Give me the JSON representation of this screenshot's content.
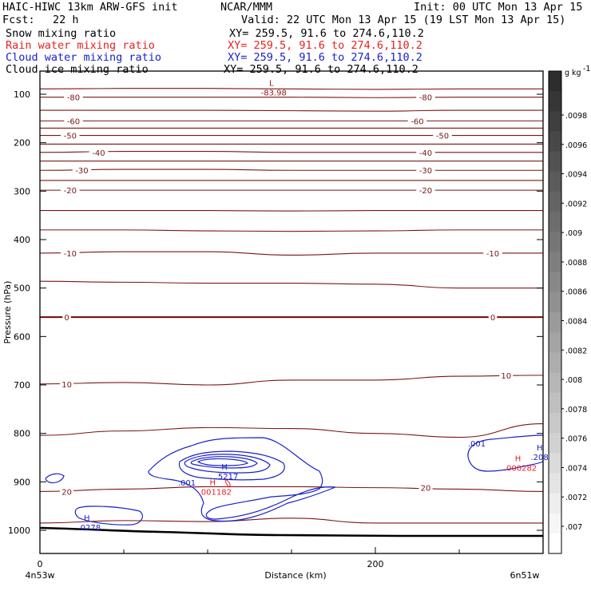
{
  "header": {
    "title": "HAIC-HIWC 13km ARW-GFS init",
    "org": "NCAR/MMM",
    "init": "Init: 00 UTC Mon 13 Apr 15",
    "fcst_label": "Fcst:",
    "fcst_value": "22 h",
    "valid": "Valid: 22 UTC Mon 13 Apr 15 (19 LST Mon 13 Apr 15)"
  },
  "fields": [
    {
      "name": "Snow mixing ratio",
      "xy": "XY= 259.5, 91.6 to 274.6,110.2",
      "color": "#000000"
    },
    {
      "name": "Rain water mixing ratio",
      "xy": "XY= 259.5, 91.6 to 274.6,110.2",
      "color": "#e8231f"
    },
    {
      "name": "Cloud water mixing ratio",
      "xy": "XY= 259.5, 91.6 to 274.6,110.2",
      "color": "#1b22c8"
    },
    {
      "name": "Cloud ice mixing ratio",
      "xy": "XY= 259.5, 91.6 to 274.6,110.2",
      "color": "#000000"
    }
  ],
  "chart_data": {
    "type": "contour",
    "xlabel": "Distance (km)",
    "ylabel": "Pressure (hPa)",
    "xlim": [
      0,
      300
    ],
    "ylim": [
      1000,
      50
    ],
    "x_ticks": [
      "0",
      "200"
    ],
    "y_ticks": [
      "100",
      "200",
      "300",
      "400",
      "500",
      "600",
      "700",
      "800",
      "900",
      "1000"
    ],
    "x_endpoints": {
      "left": "4n53w",
      "right": "6n51w"
    },
    "temperature_contour_labels": [
      {
        "value": "-80",
        "x": 20,
        "p": 106
      },
      {
        "value": "-80",
        "x": 230,
        "p": 106
      },
      {
        "value": "-60",
        "x": 20,
        "p": 155
      },
      {
        "value": "-60",
        "x": 225,
        "p": 155
      },
      {
        "value": "-50",
        "x": 18,
        "p": 185
      },
      {
        "value": "-50",
        "x": 240,
        "p": 185
      },
      {
        "value": "-40",
        "x": 35,
        "p": 220
      },
      {
        "value": "-40",
        "x": 230,
        "p": 220
      },
      {
        "value": "-30",
        "x": 25,
        "p": 257
      },
      {
        "value": "-30",
        "x": 230,
        "p": 257
      },
      {
        "value": "-20",
        "x": 18,
        "p": 298
      },
      {
        "value": "-20",
        "x": 230,
        "p": 298
      },
      {
        "value": "-10",
        "x": 18,
        "p": 428
      },
      {
        "value": "-10",
        "x": 270,
        "p": 428
      },
      {
        "value": "0",
        "x": 16,
        "p": 560
      },
      {
        "value": "0",
        "x": 270,
        "p": 560
      },
      {
        "value": "10",
        "x": 16,
        "p": 698
      },
      {
        "value": "10",
        "x": 278,
        "p": 680
      },
      {
        "value": "20",
        "x": 16,
        "p": 920
      },
      {
        "value": "20",
        "x": 230,
        "p": 912
      }
    ],
    "temperature_contours_p": [
      [
        89,
        88,
        88,
        89,
        90,
        89,
        89
      ],
      [
        106,
        106,
        106,
        106,
        107,
        106,
        106
      ],
      [
        133,
        133,
        133,
        134,
        135,
        133,
        133
      ],
      [
        155,
        155,
        155,
        155,
        155,
        155,
        155
      ],
      [
        170,
        170,
        170,
        170,
        170,
        170,
        170
      ],
      [
        185,
        185,
        185,
        185,
        185,
        185,
        185
      ],
      [
        203,
        203,
        203,
        203,
        203,
        203,
        203
      ],
      [
        220,
        218,
        218,
        220,
        220,
        220,
        220
      ],
      [
        238,
        238,
        238,
        238,
        238,
        238,
        238
      ],
      [
        257,
        255,
        255,
        257,
        257,
        257,
        257
      ],
      [
        278,
        278,
        278,
        278,
        278,
        278,
        278
      ],
      [
        298,
        298,
        298,
        298,
        298,
        298,
        298
      ],
      [
        340,
        340,
        340,
        341,
        340,
        340,
        340
      ],
      [
        380,
        380,
        382,
        383,
        382,
        380,
        380
      ],
      [
        428,
        425,
        425,
        432,
        428,
        428,
        428
      ],
      [
        486,
        488,
        490,
        490,
        492,
        500,
        500
      ],
      [
        560,
        560,
        560,
        560,
        560,
        560,
        560
      ],
      [
        698,
        695,
        700,
        690,
        690,
        682,
        680
      ],
      [
        804,
        795,
        788,
        790,
        800,
        808,
        780
      ],
      [
        920,
        915,
        910,
        910,
        912,
        915,
        920
      ],
      [
        985,
        980,
        982,
        975,
        985,
        985,
        985
      ]
    ],
    "temperature_contour_x": [
      0,
      50,
      100,
      150,
      200,
      250,
      300
    ],
    "highs_lows": [
      {
        "type": "L",
        "value": "-83.98",
        "x": 138,
        "p": 88,
        "color": "#8b1a1a"
      },
      {
        "type": "H",
        "value": ".5217",
        "x": 110,
        "p": 880,
        "color": "#1b22c8"
      },
      {
        "type": "H",
        "value": ".001182",
        "x": 103,
        "p": 912,
        "color": "#e8231f"
      },
      {
        "type": "H",
        "value": ".0278",
        "x": 28,
        "p": 985,
        "color": "#1b22c8"
      },
      {
        "type": "H",
        "value": ".2082",
        "x": 298,
        "p": 840,
        "color": "#1b22c8"
      },
      {
        "type": "H",
        "value": ".000282",
        "x": 285,
        "p": 862,
        "color": "#e8231f"
      }
    ],
    "cloud_water_labels": [
      ".001",
      ".001"
    ],
    "colorbar": {
      "unit": "g kg",
      "unit_exp": "-1",
      "ticks": [
        ".0098",
        ".0096",
        ".0094",
        ".0092",
        ".009",
        ".0088",
        ".0086",
        ".0084",
        ".0082",
        ".008",
        ".0078",
        ".0076",
        ".0074",
        ".0072",
        ".007"
      ]
    }
  }
}
